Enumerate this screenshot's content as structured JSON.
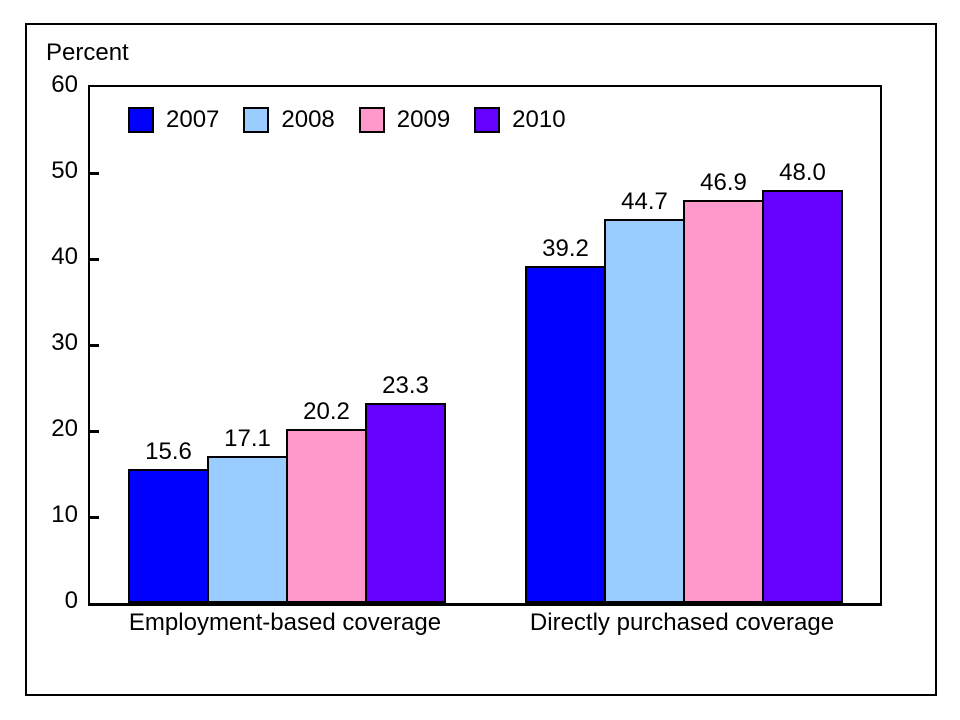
{
  "chart_data": {
    "type": "bar",
    "title": "",
    "xlabel": "",
    "ylabel": "Percent",
    "categories": [
      "Employment-based coverage",
      "Directly purchased coverage"
    ],
    "series": [
      {
        "name": "2007",
        "color": "#0000ff",
        "values": [
          15.6,
          39.2
        ]
      },
      {
        "name": "2008",
        "color": "#99ccff",
        "values": [
          17.1,
          44.7
        ]
      },
      {
        "name": "2009",
        "color": "#ff99cc",
        "values": [
          20.2,
          46.9
        ]
      },
      {
        "name": "2010",
        "color": "#6600ff",
        "values": [
          23.3,
          48.0
        ]
      }
    ],
    "value_labels": [
      [
        "15.6",
        "17.1",
        "20.2",
        "23.3"
      ],
      [
        "39.2",
        "44.7",
        "46.9",
        "48.0"
      ]
    ],
    "ylim": [
      0,
      60
    ],
    "yticks": [
      0,
      10,
      20,
      30,
      40,
      50,
      60
    ],
    "grid": false,
    "legend_position": "top-left-inside",
    "frame_color": "#000000",
    "background_color": "#ffffff"
  }
}
